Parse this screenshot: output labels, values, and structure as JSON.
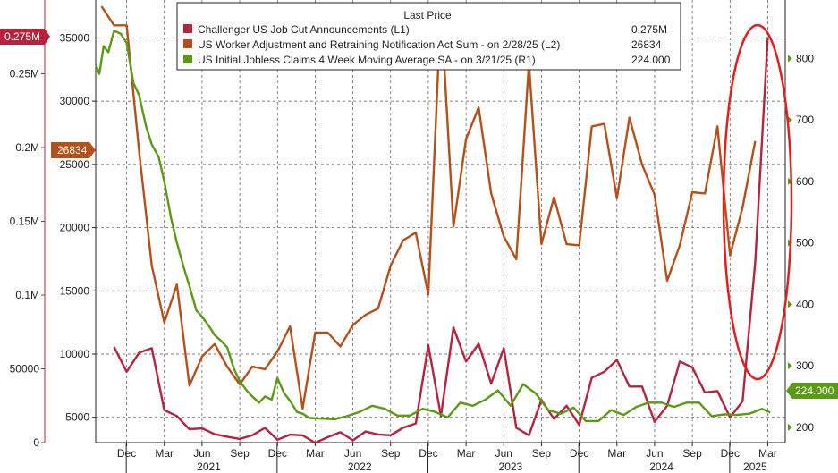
{
  "chart_data": {
    "type": "line",
    "legend": {
      "title": "Last Price",
      "placement": "top-center",
      "entries": [
        {
          "label": "Challenger US Job Cut Announcements  (L1)",
          "value": "0.275M",
          "color": "#b5243c"
        },
        {
          "label": "US Worker Adjustment and Retraining Notification Act Sum -  on 2/28/25  (L2)",
          "value": "26834",
          "color": "#b5501a"
        },
        {
          "label": "US Initial Jobless Claims 4 Week Moving Average SA -  on 3/21/25  (R1)",
          "value": "224.000",
          "color": "#5b9a16"
        }
      ]
    },
    "axes": {
      "left1": {
        "ticks": [
          "0",
          "50000",
          "0.1M",
          "0.15M",
          "0.2M",
          "0.25M"
        ],
        "ylim": [
          0,
          300000
        ]
      },
      "left2": {
        "ticks": [
          "5000",
          "10000",
          "15000",
          "20000",
          "25000",
          "30000",
          "35000"
        ],
        "ylim": [
          3000,
          38000
        ]
      },
      "right": {
        "ticks": [
          "200",
          "300",
          "400",
          "500",
          "600",
          "700",
          "800"
        ],
        "ylim": [
          175,
          895
        ]
      },
      "x_month_ticks": [
        "Dec",
        "Mar",
        "Jun",
        "Sep",
        "Dec",
        "Mar",
        "Jun",
        "Sep",
        "Dec",
        "Mar",
        "Jun",
        "Sep",
        "Dec",
        "Mar",
        "Jun",
        "Sep",
        "Dec",
        "Mar"
      ],
      "x_year_labels": [
        "2021",
        "2022",
        "2023",
        "2024",
        "2025"
      ]
    },
    "grid": true,
    "last_value_tags": {
      "left1": "0.275M",
      "left2": "26834",
      "right": "224.000"
    },
    "annotation": "red ellipse highlighting the early-2025 surge",
    "series": [
      {
        "name": "Challenger US Job Cut Announcements",
        "axis": "left1",
        "color": "#b5243c",
        "x": [
          "2020-11",
          "2020-12",
          "2021-01",
          "2021-02",
          "2021-03",
          "2021-04",
          "2021-05",
          "2021-06",
          "2021-07",
          "2021-08",
          "2021-09",
          "2021-10",
          "2021-11",
          "2021-12",
          "2022-01",
          "2022-02",
          "2022-03",
          "2022-04",
          "2022-05",
          "2022-06",
          "2022-07",
          "2022-08",
          "2022-09",
          "2022-10",
          "2022-11",
          "2022-12",
          "2023-01",
          "2023-02",
          "2023-03",
          "2023-04",
          "2023-05",
          "2023-06",
          "2023-07",
          "2023-08",
          "2023-09",
          "2023-10",
          "2023-11",
          "2023-12",
          "2024-01",
          "2024-02",
          "2024-03",
          "2024-04",
          "2024-05",
          "2024-06",
          "2024-07",
          "2024-08",
          "2024-09",
          "2024-10",
          "2024-11",
          "2024-12",
          "2025-01",
          "2025-02",
          "2025-03"
        ],
        "values": [
          64800,
          48000,
          61000,
          64000,
          22000,
          18000,
          9000,
          9700,
          5700,
          4000,
          2500,
          5000,
          10000,
          2000,
          5400,
          4900,
          -200,
          3700,
          7000,
          1500,
          7500,
          5500,
          5000,
          10100,
          13000,
          66000,
          18000,
          78000,
          55000,
          67000,
          40000,
          64000,
          10000,
          5000,
          29000,
          16000,
          25000,
          12000,
          44000,
          48000,
          56000,
          38000,
          38000,
          14000,
          25000,
          55000,
          51000,
          34000,
          35000,
          17000,
          28000,
          122000,
          275000
        ]
      },
      {
        "name": "US Worker Adjustment and Retraining Notification Act Sum",
        "axis": "left2",
        "color": "#b5501a",
        "x": [
          "2020-10",
          "2020-11",
          "2020-12",
          "2021-01",
          "2021-02",
          "2021-03",
          "2021-04",
          "2021-05",
          "2021-06",
          "2021-07",
          "2021-08",
          "2021-09",
          "2021-10",
          "2021-11",
          "2021-12",
          "2022-01",
          "2022-02",
          "2022-03",
          "2022-04",
          "2022-05",
          "2022-06",
          "2022-07",
          "2022-08",
          "2022-09",
          "2022-10",
          "2022-11",
          "2022-12",
          "2023-01",
          "2023-02",
          "2023-03",
          "2023-04",
          "2023-05",
          "2023-06",
          "2023-07",
          "2023-08",
          "2023-09",
          "2023-10",
          "2023-11",
          "2023-12",
          "2024-01",
          "2024-02",
          "2024-03",
          "2024-04",
          "2024-05",
          "2024-06",
          "2024-07",
          "2024-08",
          "2024-09",
          "2024-10",
          "2024-11",
          "2024-12",
          "2025-01",
          "2025-02"
        ],
        "values": [
          37500,
          36000,
          36000,
          26000,
          17000,
          12500,
          15500,
          7500,
          9800,
          10800,
          9000,
          7600,
          9000,
          8800,
          10200,
          12200,
          5700,
          11700,
          11700,
          10600,
          12300,
          13100,
          13600,
          17000,
          19000,
          19600,
          14700,
          37500,
          20100,
          27000,
          29500,
          22700,
          19300,
          17500,
          33000,
          18700,
          22400,
          18700,
          18600,
          28000,
          28200,
          22300,
          28700,
          25000,
          22600,
          15800,
          18600,
          22800,
          22700,
          28000,
          17800,
          21600,
          26834
        ]
      },
      {
        "name": "US Initial Jobless Claims 4 Week Moving Average SA",
        "axis": "right",
        "color": "#5b9a16",
        "x": [
          "2020-10-01",
          "2020-10-10",
          "2020-10-20",
          "2020-11-01",
          "2020-11-15",
          "2020-12-01",
          "2020-12-15",
          "2021-01-01",
          "2021-01-15",
          "2021-02-01",
          "2021-02-15",
          "2021-03-01",
          "2021-03-15",
          "2021-04-01",
          "2021-04-15",
          "2021-05-01",
          "2021-05-15",
          "2021-06-01",
          "2021-06-15",
          "2021-07-01",
          "2021-07-15",
          "2021-08-01",
          "2021-08-15",
          "2021-09-01",
          "2021-09-15",
          "2021-10-01",
          "2021-10-15",
          "2021-11-01",
          "2021-11-15",
          "2021-12-01",
          "2021-12-15",
          "2022-01-01",
          "2022-01-15",
          "2022-02-01",
          "2022-02-15",
          "2022-03-01",
          "2022-04-01",
          "2022-05-01",
          "2022-06-01",
          "2022-07-01",
          "2022-08-01",
          "2022-09-01",
          "2022-10-01",
          "2022-11-01",
          "2022-12-01",
          "2023-01-01",
          "2023-02-01",
          "2023-03-01",
          "2023-04-01",
          "2023-05-01",
          "2023-06-01",
          "2023-07-01",
          "2023-08-01",
          "2023-09-01",
          "2023-10-01",
          "2023-11-01",
          "2023-12-01",
          "2024-01-01",
          "2024-02-01",
          "2024-03-01",
          "2024-04-01",
          "2024-05-01",
          "2024-06-01",
          "2024-07-01",
          "2024-08-01",
          "2024-09-01",
          "2024-10-01",
          "2024-11-01",
          "2024-12-01",
          "2025-01-01",
          "2025-02-01",
          "2025-03-01",
          "2025-03-21"
        ],
        "values": [
          790,
          775,
          820,
          810,
          845,
          840,
          825,
          760,
          740,
          690,
          660,
          640,
          600,
          540,
          500,
          460,
          430,
          390,
          380,
          365,
          350,
          340,
          330,
          295,
          275,
          260,
          250,
          240,
          250,
          245,
          280,
          255,
          243,
          225,
          222,
          215,
          214,
          213,
          218,
          225,
          235,
          230,
          219,
          219,
          230,
          225,
          216,
          240,
          235,
          245,
          260,
          235,
          270,
          255,
          228,
          222,
          232,
          210,
          210,
          228,
          220,
          233,
          240,
          240,
          233,
          240,
          240,
          218,
          221,
          220,
          222,
          230,
          224
        ]
      }
    ]
  }
}
